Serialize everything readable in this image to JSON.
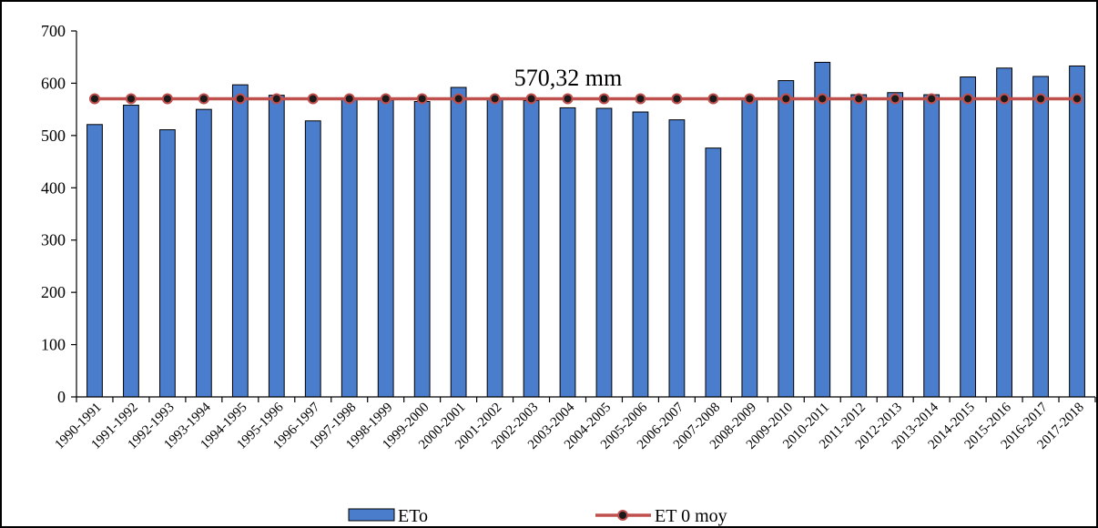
{
  "chart_data": {
    "type": "bar",
    "categories": [
      "1990-1991",
      "1991-1992",
      "1992-1993",
      "1993-1994",
      "1994-1995",
      "1995-1996",
      "1996-1997",
      "1997-1998",
      "1998-1999",
      "1999-2000",
      "2000-2001",
      "2001-2002",
      "2002-2003",
      "2003-2004",
      "2004-2005",
      "2005-2006",
      "2006-2007",
      "2007-2008",
      "2008-2009",
      "2009-2010",
      "2010-2011",
      "2011-2012",
      "2012-2013",
      "2013-2014",
      "2014-2015",
      "2015-2016",
      "2016-2017",
      "2017-2018"
    ],
    "series": [
      {
        "name": "ETo",
        "type": "bar",
        "color": "#4a7dcc",
        "values": [
          521,
          558,
          511,
          550,
          597,
          577,
          528,
          569,
          568,
          565,
          592,
          570,
          567,
          553,
          552,
          545,
          530,
          476,
          569,
          605,
          640,
          578,
          582,
          578,
          612,
          629,
          613,
          633
        ]
      },
      {
        "name": "ET 0 moy",
        "type": "line",
        "color": "#c0504d",
        "marker_color": "#1a1a1a",
        "values": [
          570.32,
          570.32,
          570.32,
          570.32,
          570.32,
          570.32,
          570.32,
          570.32,
          570.32,
          570.32,
          570.32,
          570.32,
          570.32,
          570.32,
          570.32,
          570.32,
          570.32,
          570.32,
          570.32,
          570.32,
          570.32,
          570.32,
          570.32,
          570.32,
          570.32,
          570.32,
          570.32,
          570.32
        ]
      }
    ],
    "y_ticks": [
      0,
      100,
      200,
      300,
      400,
      500,
      600,
      700
    ],
    "ylim": [
      0,
      700
    ],
    "annotation": "570,32 mm",
    "legend_position": "bottom",
    "grid": false,
    "title": "",
    "xlabel": "",
    "ylabel": ""
  }
}
